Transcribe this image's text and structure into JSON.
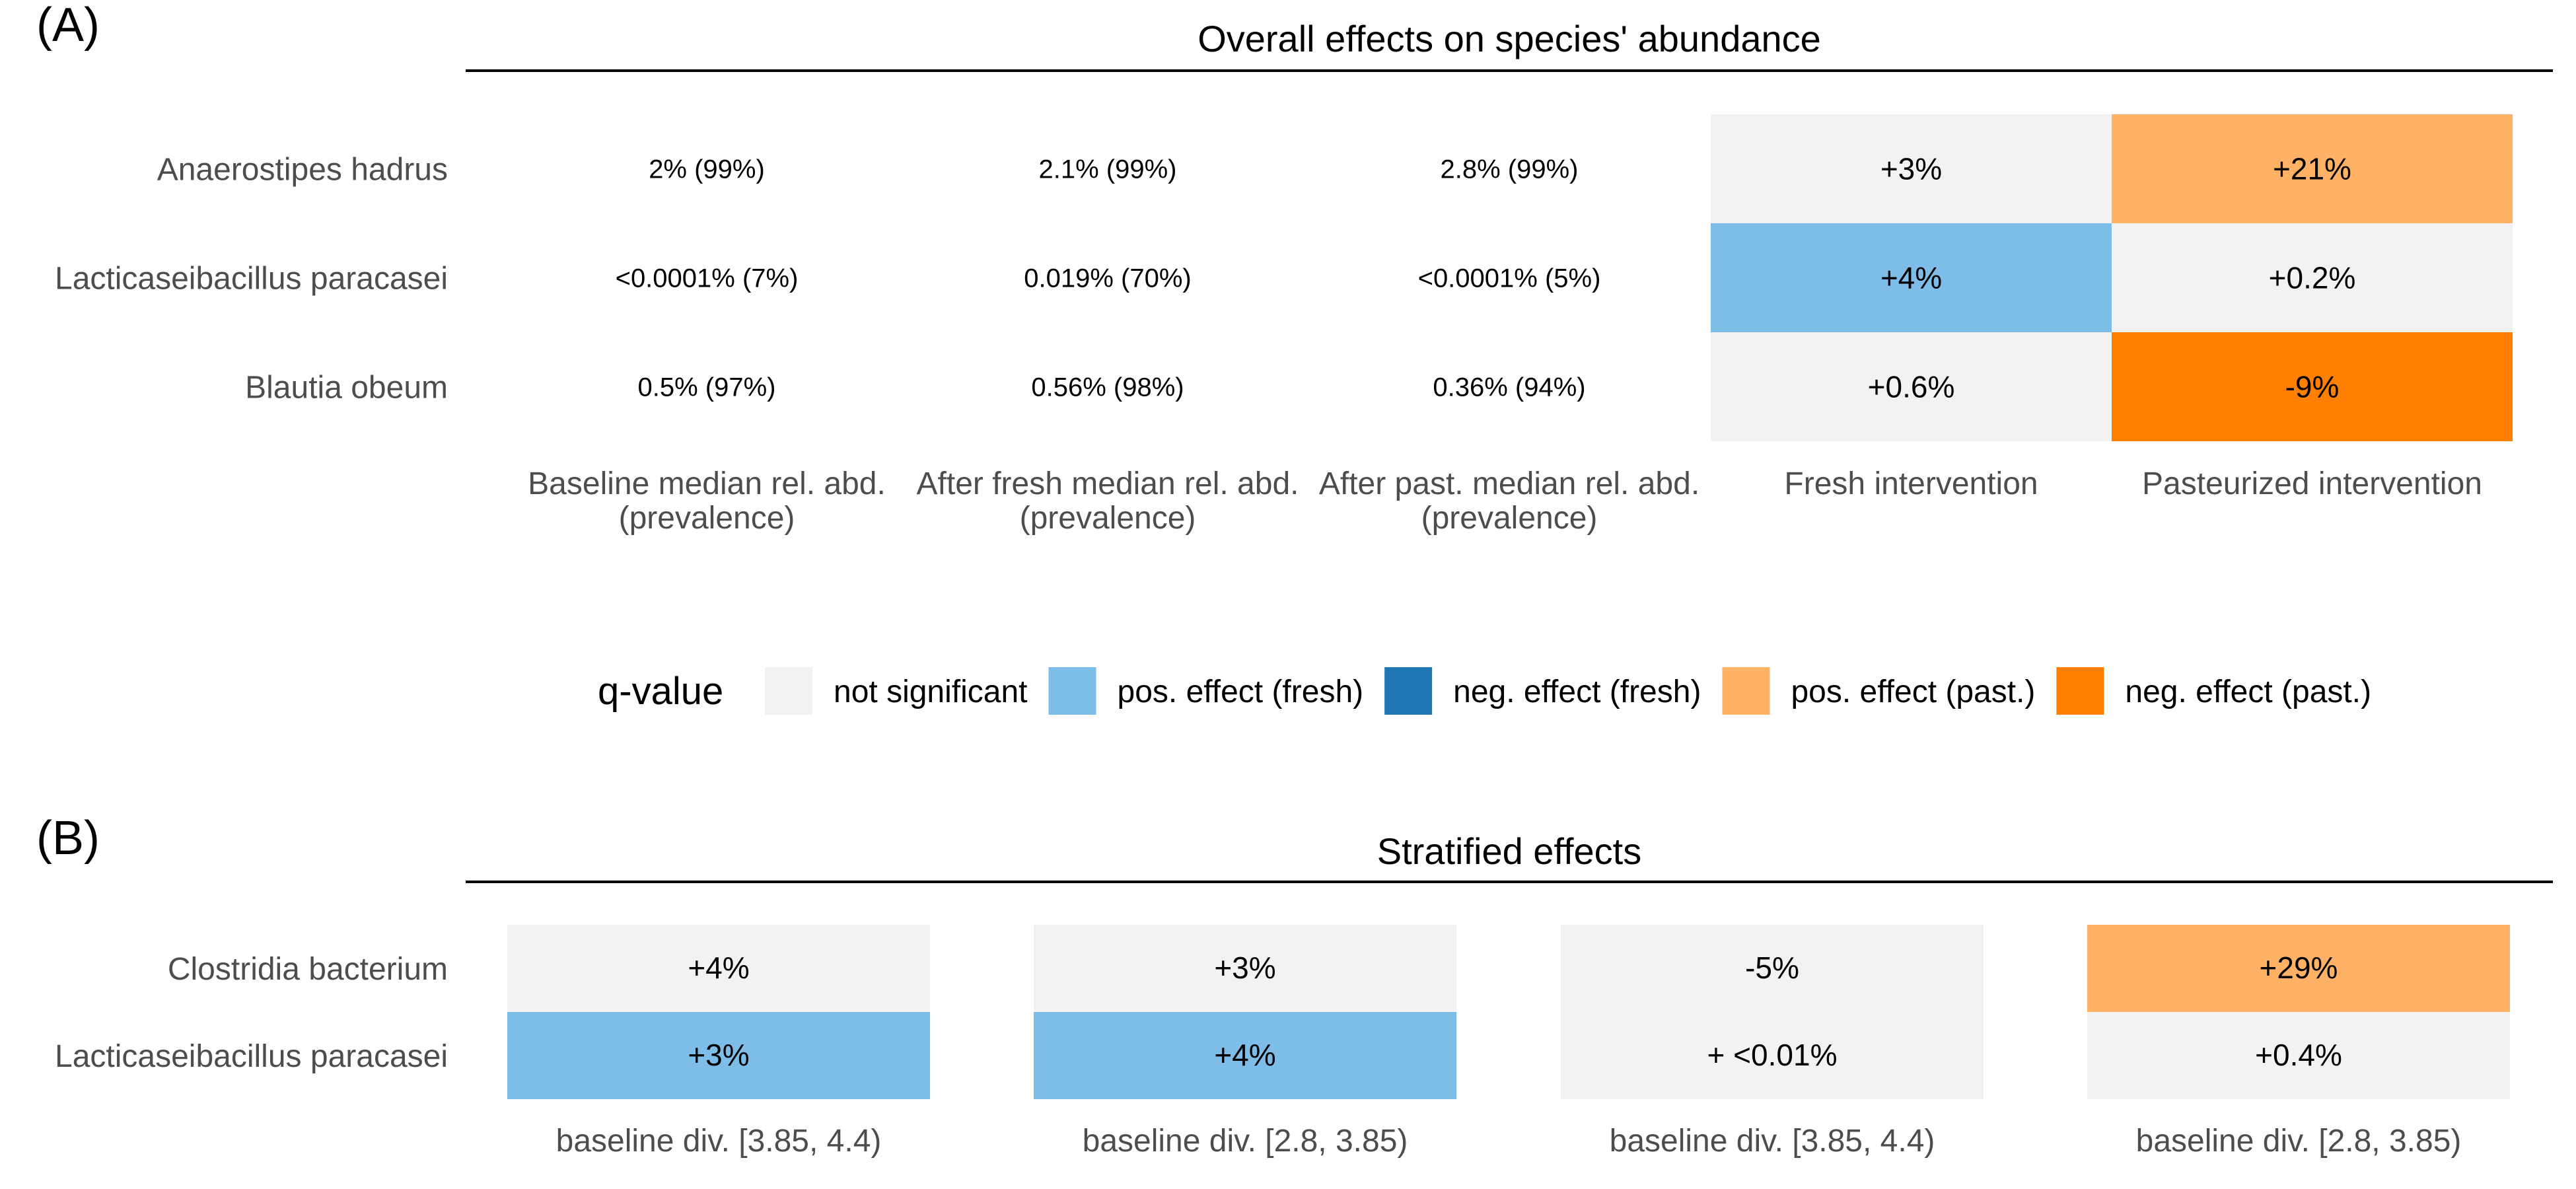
{
  "chart_data": [
    {
      "type": "heatmap",
      "panel_label": "(A)",
      "title": "Overall effects on species' abundance",
      "rows": [
        "Anaerostipes hadrus",
        "Lacticaseibacillus paracasei",
        "Blautia obeum"
      ],
      "text_columns": [
        {
          "label_line1": "Baseline median rel. abd.",
          "label_line2": "(prevalence)",
          "values": [
            "2% (99%)",
            "<0.0001% (7%)",
            "0.5% (97%)"
          ]
        },
        {
          "label_line1": "After fresh median rel. abd.",
          "label_line2": "(prevalence)",
          "values": [
            "2.1% (99%)",
            "0.019% (70%)",
            "0.56% (98%)"
          ]
        },
        {
          "label_line1": "After past. median rel. abd.",
          "label_line2": "(prevalence)",
          "values": [
            "2.8% (99%)",
            "<0.0001% (5%)",
            "0.36% (94%)"
          ]
        }
      ],
      "effect_columns": [
        {
          "label": "Fresh intervention",
          "values": [
            "+3%",
            "+4%",
            "+0.6%"
          ],
          "categories": [
            "not significant",
            "pos. effect (fresh)",
            "not significant"
          ]
        },
        {
          "label": "Pasteurized intervention",
          "values": [
            "+21%",
            "+0.2%",
            "-9%"
          ],
          "categories": [
            "pos. effect (past.)",
            "not significant",
            "neg. effect (past.)"
          ]
        }
      ]
    },
    {
      "type": "heatmap",
      "panel_label": "(B)",
      "title": "Stratified effects",
      "rows": [
        "Clostridia bacterium",
        "Lacticaseibacillus paracasei"
      ],
      "columns": [
        {
          "label": "baseline div. [3.85, 4.4)",
          "values": [
            "+4%",
            "+3%"
          ],
          "categories": [
            "not significant",
            "pos. effect (fresh)"
          ]
        },
        {
          "label": "baseline div. [2.8, 3.85)",
          "values": [
            "+3%",
            "+4%"
          ],
          "categories": [
            "not significant",
            "pos. effect (fresh)"
          ]
        },
        {
          "label": "baseline div. [3.85, 4.4)",
          "values": [
            "-5%",
            "+ <0.01%"
          ],
          "categories": [
            "not significant",
            "not significant"
          ]
        },
        {
          "label": "baseline div. [2.8, 3.85)",
          "values": [
            "+29%",
            "+0.4%"
          ],
          "categories": [
            "pos. effect (past.)",
            "not significant"
          ]
        }
      ]
    }
  ],
  "legend": {
    "title": "q-value",
    "position": "between-panels",
    "items": [
      {
        "label": "not significant",
        "color": "#f2f2f2"
      },
      {
        "label": "pos. effect (fresh)",
        "color": "#7fbde9"
      },
      {
        "label": "neg. effect (fresh)",
        "color": "#1f78b4"
      },
      {
        "label": "pos. effect (past.)",
        "color": "#ffb266"
      },
      {
        "label": "neg. effect (past.)",
        "color": "#ff7f00"
      }
    ]
  }
}
